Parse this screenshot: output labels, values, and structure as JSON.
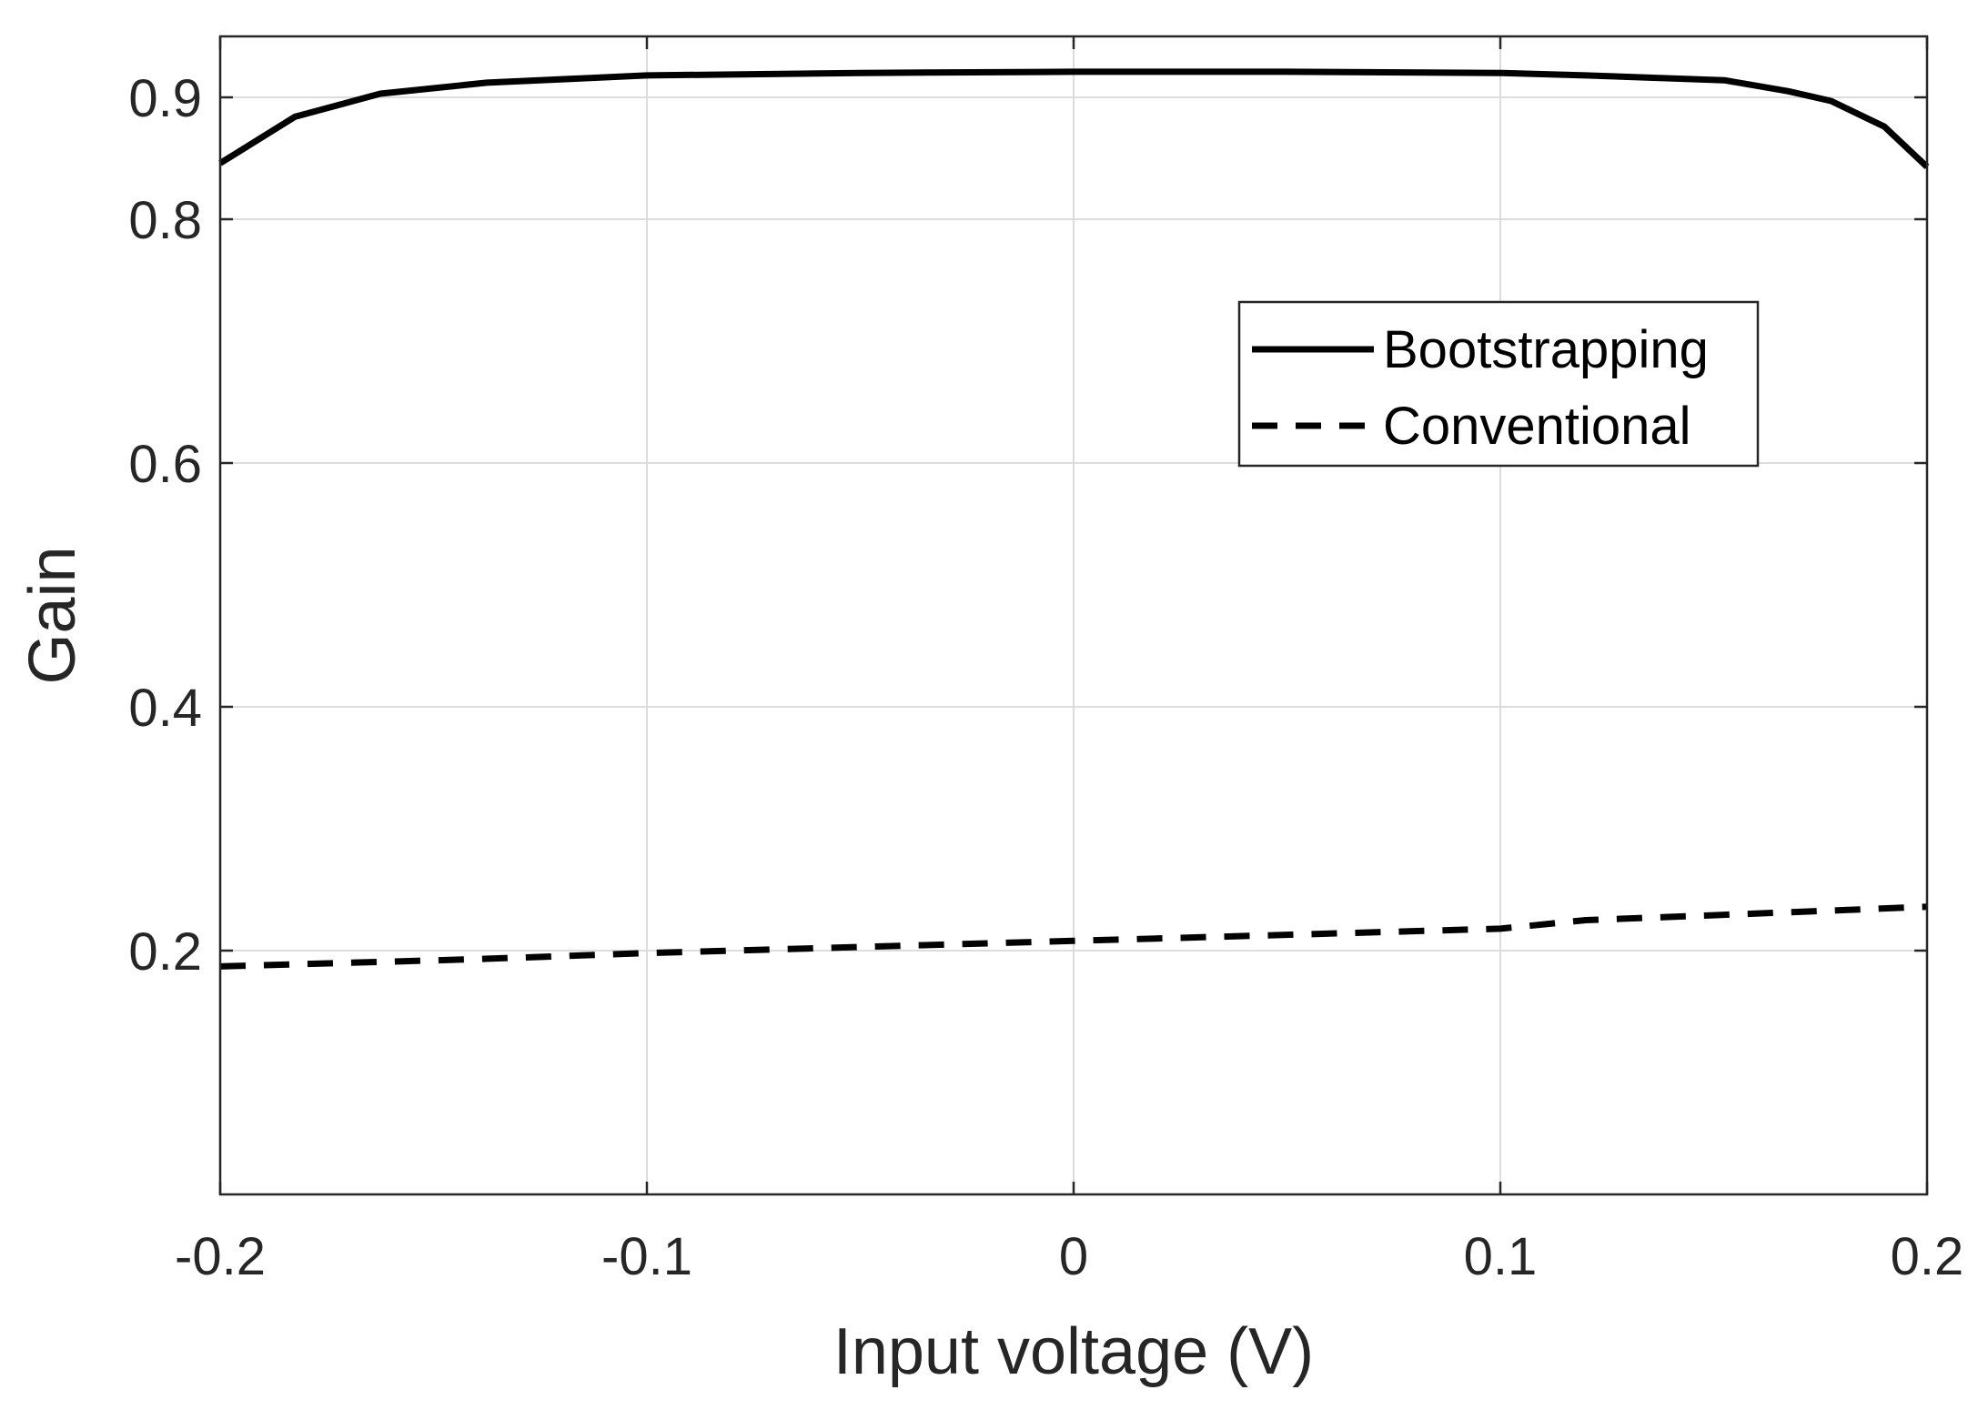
{
  "chart_data": {
    "type": "line",
    "title": "",
    "xlabel": "Input voltage (V)",
    "ylabel": "Gain",
    "xlim": [
      -0.2,
      0.2
    ],
    "ylim": [
      0,
      0.95
    ],
    "grid": true,
    "legend_position": "upper-right",
    "x_ticks": [
      {
        "value": -0.2,
        "label": "-0.2"
      },
      {
        "value": -0.1,
        "label": "-0.1"
      },
      {
        "value": 0,
        "label": "0"
      },
      {
        "value": 0.1,
        "label": "0.1"
      },
      {
        "value": 0.2,
        "label": "0.2"
      }
    ],
    "y_ticks": [
      {
        "value": 0.2,
        "label": "0.2"
      },
      {
        "value": 0.4,
        "label": "0.4"
      },
      {
        "value": 0.6,
        "label": "0.6"
      },
      {
        "value": 0.8,
        "label": "0.8"
      },
      {
        "value": 0.9,
        "label": "0.9"
      }
    ],
    "series": [
      {
        "name": "Bootstrapping",
        "style": "solid",
        "color": "#000000",
        "x": [
          -0.2,
          -0.1825,
          -0.1625,
          -0.1375,
          -0.1,
          -0.05,
          0,
          0.05,
          0.1,
          0.12,
          0.1525,
          0.1675,
          0.1775,
          0.19,
          0.2
        ],
        "y": [
          0.846,
          0.884,
          0.903,
          0.912,
          0.918,
          0.92,
          0.921,
          0.921,
          0.92,
          0.918,
          0.914,
          0.905,
          0.897,
          0.876,
          0.843
        ]
      },
      {
        "name": "Conventional",
        "style": "dashed",
        "color": "#000000",
        "x": [
          -0.2,
          -0.17,
          -0.14,
          -0.1,
          -0.05,
          0,
          0.05,
          0.1,
          0.12,
          0.15,
          0.2
        ],
        "y": [
          0.187,
          0.19,
          0.193,
          0.198,
          0.203,
          0.208,
          0.213,
          0.218,
          0.225,
          0.229,
          0.236
        ]
      }
    ]
  }
}
